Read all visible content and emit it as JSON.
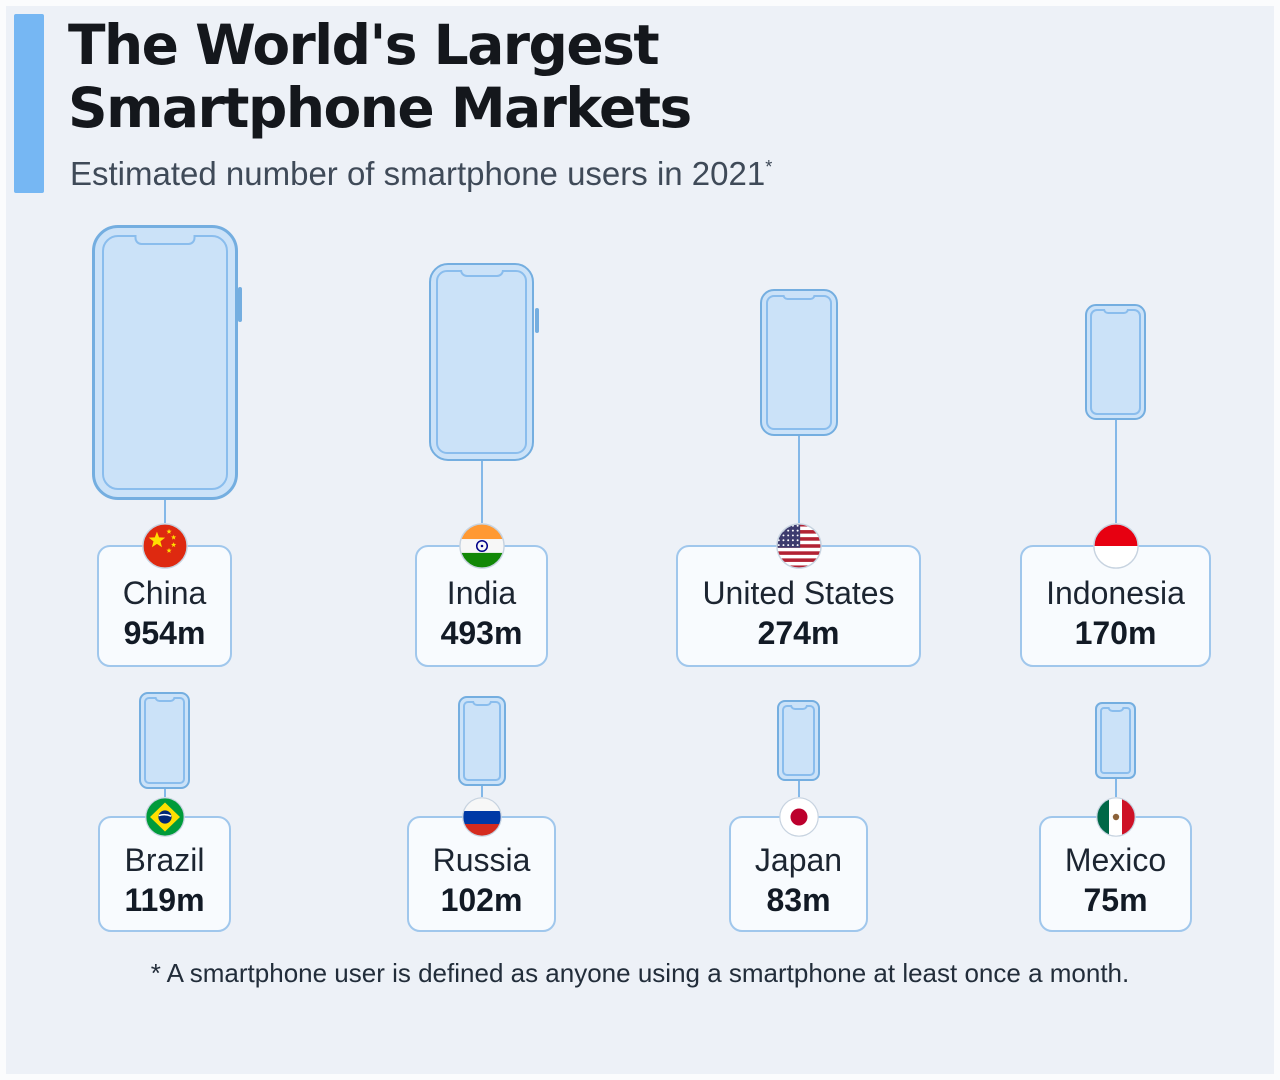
{
  "title_line1": "The World's Largest",
  "title_line2": "Smartphone Markets",
  "subtitle": "Estimated number of smartphone users in 2021",
  "subtitle_sup": "*",
  "footnote": "* A smartphone user is defined as anyone using a smartphone at least once a month.",
  "colors": {
    "background": "#edf1f7",
    "accent_bar": "#76b7f3",
    "phone_fill": "#cbe2f8",
    "phone_stroke": "#74aee0",
    "box_border": "#a0c7ec",
    "title_text": "#14171c",
    "subtitle_text": "#3f4a58"
  },
  "chart_data": {
    "type": "pictogram",
    "title": "The World's Largest Smartphone Markets",
    "subtitle": "Estimated number of smartphone users in 2021*",
    "unit": "million smartphone users",
    "layout": {
      "rows": 2,
      "columns": 4,
      "icon": "smartphone",
      "icon_scaled_by": "value"
    },
    "items": [
      {
        "country": "China",
        "value": 954,
        "value_label": "954m",
        "flag": "china"
      },
      {
        "country": "India",
        "value": 493,
        "value_label": "493m",
        "flag": "india"
      },
      {
        "country": "United States",
        "value": 274,
        "value_label": "274m",
        "flag": "united-states"
      },
      {
        "country": "Indonesia",
        "value": 170,
        "value_label": "170m",
        "flag": "indonesia"
      },
      {
        "country": "Brazil",
        "value": 119,
        "value_label": "119m",
        "flag": "brazil"
      },
      {
        "country": "Russia",
        "value": 102,
        "value_label": "102m",
        "flag": "russia"
      },
      {
        "country": "Japan",
        "value": 83,
        "value_label": "83m",
        "flag": "japan"
      },
      {
        "country": "Mexico",
        "value": 75,
        "value_label": "75m",
        "flag": "mexico"
      }
    ],
    "footnote": "* A smartphone user is defined as anyone using a smartphone at least once a month."
  }
}
